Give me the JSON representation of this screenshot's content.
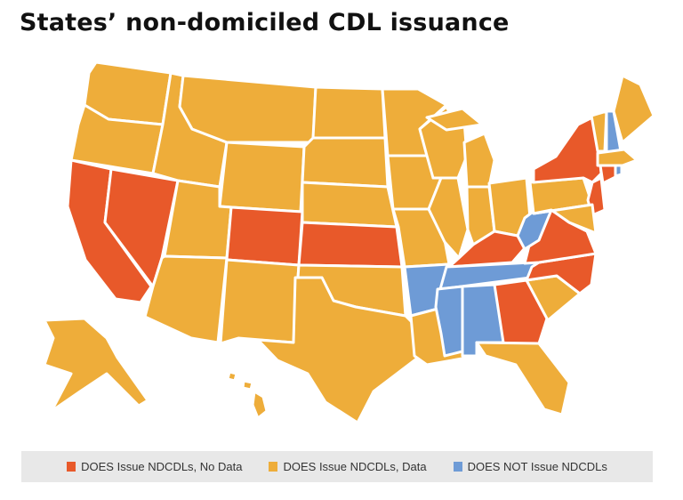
{
  "title": "States’ non-domiciled CDL issuance",
  "categories": {
    "no_data": {
      "label": "DOES Issue NDCDLs, No Data",
      "color": "#E8592A"
    },
    "data": {
      "label": "DOES Issue NDCDLs, Data",
      "color": "#EEAD3A"
    },
    "not_issue": {
      "label": "DOES NOT Issue NDCDLs",
      "color": "#6E9BD6"
    }
  },
  "states": {
    "WA": "data",
    "OR": "data",
    "CA": "no_data",
    "NV": "no_data",
    "ID": "data",
    "MT": "data",
    "WY": "data",
    "UT": "data",
    "AZ": "data",
    "CO": "no_data",
    "NM": "data",
    "ND": "data",
    "SD": "data",
    "NE": "data",
    "KS": "no_data",
    "OK": "data",
    "TX": "data",
    "MN": "data",
    "IA": "data",
    "MO": "data",
    "AR": "not_issue",
    "LA": "data",
    "WI": "data",
    "IL": "data",
    "MI": "data",
    "MI-UP": "data",
    "IN": "data",
    "OH": "data",
    "KY": "no_data",
    "TN": "not_issue",
    "MS": "not_issue",
    "AL": "not_issue",
    "GA": "no_data",
    "FL": "data",
    "SC": "data",
    "NC": "no_data",
    "VA": "no_data",
    "WV": "not_issue",
    "PA": "data",
    "NY": "no_data",
    "NJ": "no_data",
    "MD": "data",
    "VT": "data",
    "NH": "not_issue",
    "ME": "data",
    "MA": "data",
    "CT": "no_data",
    "RI": "not_issue",
    "AK": "data",
    "HI": "data"
  }
}
